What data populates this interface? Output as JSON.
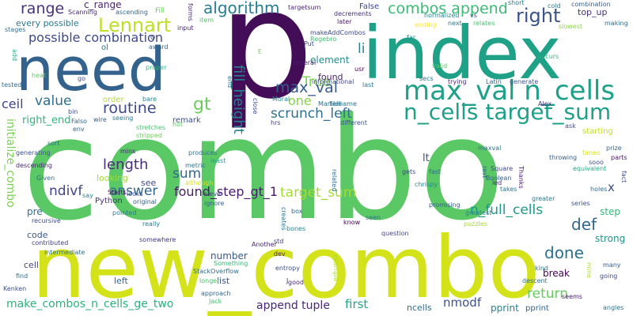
{
  "words": [
    {
      "text": "combo",
      "color": "#5ac864"
    },
    {
      "text": "new_combo",
      "color": "#d4e21a"
    },
    {
      "text": "p",
      "color": "#440d57"
    },
    {
      "text": "index",
      "color": "#1fa188"
    },
    {
      "text": "need",
      "color": "#33628d"
    },
    {
      "text": "max_val n_cells",
      "color": "#1fa088"
    },
    {
      "text": "n_cells target_sum",
      "color": "#1fa088"
    },
    {
      "text": "combos append",
      "color": "#3bbb75"
    },
    {
      "text": "algorithm",
      "color": "#287d8e"
    },
    {
      "text": "Lennart",
      "color": "#bddf26"
    },
    {
      "text": "right",
      "color": "#3b528b"
    },
    {
      "text": "range",
      "color": "#46337e"
    },
    {
      "text": "c_range",
      "color": "#482374"
    },
    {
      "text": "possible combination",
      "color": "#3e4a89"
    },
    {
      "text": "every possible",
      "color": "#2a788e"
    },
    {
      "text": "True",
      "color": "#7ad151"
    },
    {
      "text": "max_val",
      "color": "#365c8d"
    },
    {
      "text": "scrunch_left",
      "color": "#2e6f8e"
    },
    {
      "text": "value",
      "color": "#2e6e8e"
    },
    {
      "text": "routine",
      "color": "#3e4989"
    },
    {
      "text": "ceil",
      "color": "#404387"
    },
    {
      "text": "gt",
      "color": "#6ccd5a"
    },
    {
      "text": "one",
      "color": "#86d549"
    },
    {
      "text": "fill_height",
      "color": "#26828e"
    },
    {
      "text": "sum",
      "color": "#31688e"
    },
    {
      "text": "li",
      "color": "#26828e"
    },
    {
      "text": "initialize_combo",
      "color": "#7ad151"
    },
    {
      "text": "length",
      "color": "#472c7a"
    },
    {
      "text": "found_step_gt_1",
      "color": "#481b6d"
    },
    {
      "text": "answer",
      "color": "#32648e"
    },
    {
      "text": "target_sum",
      "color": "#a5db36"
    },
    {
      "text": "n_full_cells",
      "color": "#1f988b"
    },
    {
      "text": "def",
      "color": "#30678d"
    },
    {
      "text": "done",
      "color": "#2d708e"
    },
    {
      "text": "return",
      "color": "#65cb5e"
    },
    {
      "text": "ndivf",
      "color": "#414487"
    },
    {
      "text": "make_combos_n_cells_ge_two",
      "color": "#2db27d"
    },
    {
      "text": "append tuple",
      "color": "#482576"
    },
    {
      "text": "first",
      "color": "#20a486"
    },
    {
      "text": "nmodf",
      "color": "#3b528b"
    },
    {
      "text": "right_end",
      "color": "#2fb47c"
    },
    {
      "text": "element",
      "color": "#21908d"
    },
    {
      "text": "found",
      "color": "#482475"
    },
    {
      "text": "lt",
      "color": "#3e4c8a"
    },
    {
      "text": "x",
      "color": "#3e4c8a"
    },
    {
      "text": "step",
      "color": "#35b779"
    },
    {
      "text": "strong",
      "color": "#21918c"
    },
    {
      "text": "break",
      "color": "#440154"
    },
    {
      "text": "pprint",
      "color": "#26828e"
    },
    {
      "text": "pprint",
      "color": "#33638d"
    },
    {
      "text": "ncells",
      "color": "#2e6e8e"
    },
    {
      "text": "list",
      "color": "#3a548c"
    },
    {
      "text": "number",
      "color": "#38588c"
    },
    {
      "text": "left",
      "color": "#31688e"
    },
    {
      "text": "cell",
      "color": "#404688"
    },
    {
      "text": "code",
      "color": "#39568c"
    },
    {
      "text": "pre",
      "color": "#2e6f8e"
    },
    {
      "text": "see",
      "color": "#3e4a89"
    },
    {
      "text": "looking",
      "color": "#a2da37"
    },
    {
      "text": "Python",
      "color": "#472d7b"
    },
    {
      "text": "top_up",
      "color": "#462f7c"
    },
    {
      "text": "False",
      "color": "#3f4788"
    },
    {
      "text": "order",
      "color": "#addc30"
    },
    {
      "text": "remark",
      "color": "#3b528b"
    },
    {
      "text": "starting",
      "color": "#c2df23"
    },
    {
      "text": "Scanning",
      "color": "#482677"
    },
    {
      "text": "ascending",
      "color": "#31688e"
    },
    {
      "text": "Fill",
      "color": "#6ccd5a"
    },
    {
      "text": "targetsum",
      "color": "#481f70"
    },
    {
      "text": "normalized",
      "color": "#24868e"
    },
    {
      "text": "decrements",
      "color": "#472e7c"
    },
    {
      "text": "makeAddCombos",
      "color": "#3e4a89"
    },
    {
      "text": "Regebro",
      "color": "#3dbc74"
    },
    {
      "text": "later",
      "color": "#481769"
    },
    {
      "text": "ending",
      "color": "#fde725"
    },
    {
      "text": "next",
      "color": "#2a788e"
    },
    {
      "text": "relates",
      "color": "#48c16e"
    },
    {
      "text": "short",
      "color": "#2a768e"
    },
    {
      "text": "cold",
      "color": "#2a778e"
    },
    {
      "text": "combination",
      "color": "#34618d"
    },
    {
      "text": "making",
      "color": "#2e6d8e"
    },
    {
      "text": "slowest",
      "color": "#8bd646"
    },
    {
      "text": "far",
      "color": "#24868e"
    },
    {
      "text": "forms",
      "color": "#482677"
    },
    {
      "text": "item",
      "color": "#52c569"
    },
    {
      "text": "award",
      "color": "#31688e"
    },
    {
      "text": "proper",
      "color": "#2fb47c"
    },
    {
      "text": "input",
      "color": "#482878"
    },
    {
      "text": "stages",
      "color": "#2d708e"
    },
    {
      "text": "tested",
      "color": "#2f6c8e"
    },
    {
      "text": "add",
      "color": "#27ad81"
    },
    {
      "text": "heat",
      "color": "#5cc863"
    },
    {
      "text": "go",
      "color": "#404688"
    },
    {
      "text": "bare",
      "color": "#24868e"
    },
    {
      "text": "bin",
      "color": "#3c508b"
    },
    {
      "text": "Falso",
      "color": "#31678e"
    },
    {
      "text": "env",
      "color": "#33638d"
    },
    {
      "text": "wire",
      "color": "#34608d"
    },
    {
      "text": "seeing",
      "color": "#2a788e"
    },
    {
      "text": "hot",
      "color": "#5ec962"
    },
    {
      "text": "stretches",
      "color": "#48c16e"
    },
    {
      "text": "stripped",
      "color": "#70cf57"
    },
    {
      "text": "mins",
      "color": "#482878"
    },
    {
      "text": "produces",
      "color": "#2d708e"
    },
    {
      "text": "least",
      "color": "#1f9e89"
    },
    {
      "text": "metric",
      "color": "#2c738e"
    },
    {
      "text": "although",
      "color": "#d8e219"
    },
    {
      "text": "sieve",
      "color": "#414487"
    },
    {
      "text": "ignore",
      "color": "#34618d"
    },
    {
      "text": "Starts",
      "color": "#460a5d"
    },
    {
      "text": "original",
      "color": "#365c8d"
    },
    {
      "text": "looks",
      "color": "#3b528b"
    },
    {
      "text": "pointed",
      "color": "#2a768e"
    },
    {
      "text": "really",
      "color": "#29798e"
    },
    {
      "text": "somewhere",
      "color": "#453882"
    },
    {
      "text": "Something",
      "color": "#32b67a"
    },
    {
      "text": "approach",
      "color": "#31668e"
    },
    {
      "text": "StackOverflow",
      "color": "#2e6e8e"
    },
    {
      "text": "longer",
      "color": "#4ac16d"
    },
    {
      "text": "Jack",
      "color": "#46c06f"
    },
    {
      "text": "entropy",
      "color": "#3b528b"
    },
    {
      "text": "good",
      "color": "#472a7a"
    },
    {
      "text": "J",
      "color": "#472a7a"
    },
    {
      "text": "std",
      "color": "#443983"
    },
    {
      "text": "dev",
      "color": "#481b6d"
    },
    {
      "text": "Another",
      "color": "#482576"
    },
    {
      "text": "bones",
      "color": "#24868e"
    },
    {
      "text": "box",
      "color": "#31688e"
    },
    {
      "text": "creates",
      "color": "#2c738e"
    },
    {
      "text": "related",
      "color": "#2e6e8e"
    },
    {
      "text": "know",
      "color": "#440154"
    },
    {
      "text": "seen",
      "color": "#2e6f8e"
    },
    {
      "text": "question",
      "color": "#3f4788"
    },
    {
      "text": "example",
      "color": "#addc30"
    },
    {
      "text": "greatest",
      "color": "#26828e"
    },
    {
      "text": "puzzles",
      "color": "#a5db36"
    },
    {
      "text": "promising",
      "color": "#38598c"
    },
    {
      "text": "chrispy",
      "color": "#23888e"
    },
    {
      "text": "gets",
      "color": "#3e4989"
    },
    {
      "text": "fast",
      "color": "#2f6b8e"
    },
    {
      "text": "rest",
      "color": "#33638d"
    },
    {
      "text": "Square",
      "color": "#3f4889"
    },
    {
      "text": "Boolean",
      "color": "#35608d"
    },
    {
      "text": "led",
      "color": "#482576"
    },
    {
      "text": "takes",
      "color": "#2c738e"
    },
    {
      "text": "Thanks",
      "color": "#481f70"
    },
    {
      "text": "greater",
      "color": "#2a788e"
    },
    {
      "text": "throwing",
      "color": "#34608d"
    },
    {
      "text": "times",
      "color": "#d8e219"
    },
    {
      "text": "sooo",
      "color": "#3b528b"
    },
    {
      "text": "prize",
      "color": "#31668e"
    },
    {
      "text": "parts",
      "color": "#481769"
    },
    {
      "text": "equivalent",
      "color": "#23a983"
    },
    {
      "text": "fact",
      "color": "#3e4a89"
    },
    {
      "text": "holes",
      "color": "#2d708e"
    },
    {
      "text": "series",
      "color": "#3b528b"
    },
    {
      "text": "kind",
      "color": "#2a788e"
    },
    {
      "text": "many",
      "color": "#34608d"
    },
    {
      "text": "mine",
      "color": "#addc30"
    },
    {
      "text": "going",
      "color": "#3e4989"
    },
    {
      "text": "descent",
      "color": "#2c738e"
    },
    {
      "text": "seems",
      "color": "#481769"
    },
    {
      "text": "angles",
      "color": "#2a778e"
    },
    {
      "text": "ask",
      "color": "#3e4a89"
    },
    {
      "text": "Alex",
      "color": "#46337e"
    },
    {
      "text": "maxval",
      "color": "#2e6e8e"
    },
    {
      "text": "different",
      "color": "#3b528b"
    },
    {
      "text": "Martelli",
      "color": "#2a768e"
    },
    {
      "text": "hrs",
      "color": "#433d84"
    },
    {
      "text": "Moral",
      "color": "#24868e"
    },
    {
      "text": "filename",
      "color": "#2c738e"
    },
    {
      "text": "close",
      "color": "#3e4a89"
    },
    {
      "text": "end",
      "color": "#2d708e"
    },
    {
      "text": "informational",
      "color": "#3f4788"
    },
    {
      "text": "last",
      "color": "#2a788e"
    },
    {
      "text": "secs",
      "color": "#2c738e"
    },
    {
      "text": "trying",
      "color": "#482878"
    },
    {
      "text": "valid",
      "color": "#5ec962"
    },
    {
      "text": "Latin",
      "color": "#31688e"
    },
    {
      "text": "generate",
      "color": "#3b528b"
    },
    {
      "text": "usr",
      "color": "#440154"
    },
    {
      "text": "several",
      "color": "#481f70"
    },
    {
      "text": "Put",
      "color": "#3e4989"
    },
    {
      "text": "occurs",
      "color": "#2db27d"
    },
    {
      "text": "E",
      "color": "#7ad151"
    },
    {
      "text": "O",
      "color": "#3e4a89"
    },
    {
      "text": "ol",
      "color": "#2a788e"
    },
    {
      "text": "sort",
      "color": "#2c738e"
    },
    {
      "text": "generating",
      "color": "#3b528b"
    },
    {
      "text": "descending",
      "color": "#482475"
    },
    {
      "text": "Given",
      "color": "#2e6e8e"
    },
    {
      "text": "recursive",
      "color": "#3e4a89"
    },
    {
      "text": "contributed",
      "color": "#433d84"
    },
    {
      "text": "say",
      "color": "#24868e"
    },
    {
      "text": "intermediate",
      "color": "#2c738e"
    },
    {
      "text": "find",
      "color": "#2e6f8e"
    },
    {
      "text": "Kenken",
      "color": "#3b528b"
    },
    {
      "text": "vs",
      "color": "#3e4989"
    }
  ]
}
